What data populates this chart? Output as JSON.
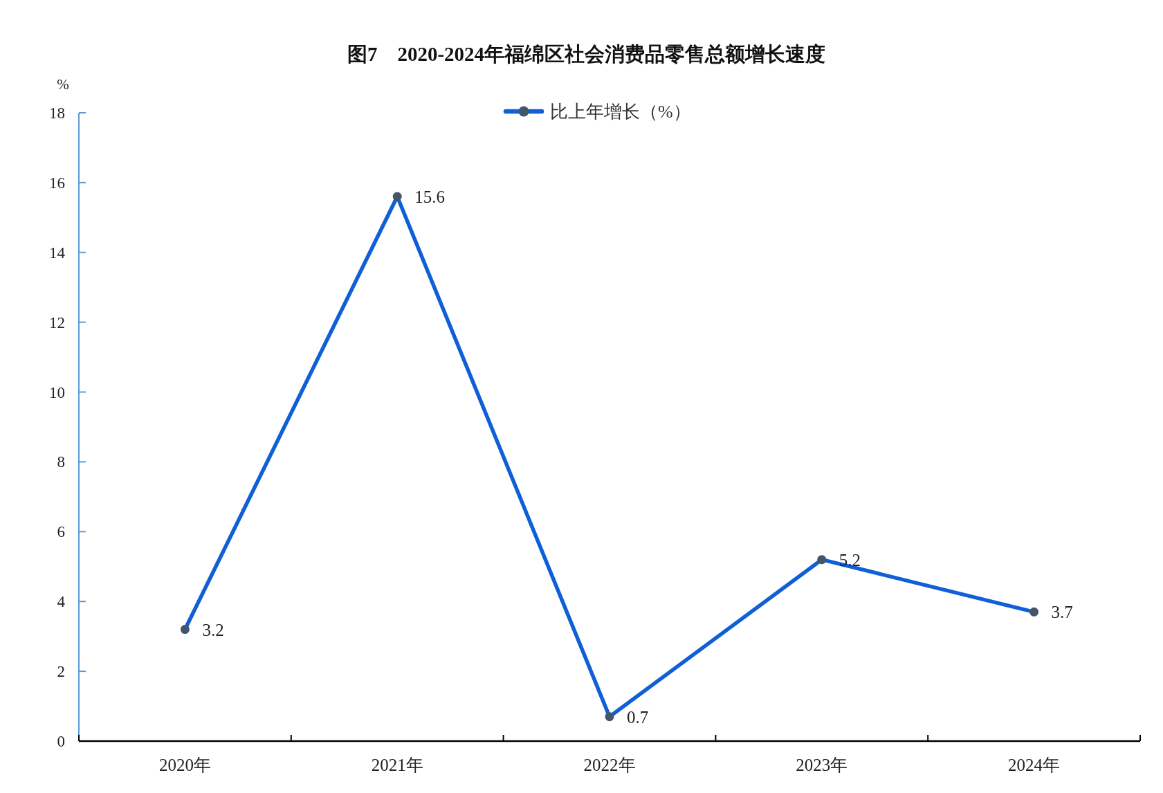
{
  "chart_data": {
    "type": "line",
    "title": "图7　2020-2024年福绵区社会消费品零售总额增长速度",
    "ylabel": "%",
    "categories": [
      "2020年",
      "2021年",
      "2022年",
      "2023年",
      "2024年"
    ],
    "series": [
      {
        "name": "比上年增长（%）",
        "color": "#0f5fd6",
        "colors": [
          "#44546a",
          "#44546a",
          "#44546a",
          "#44546a",
          "#44546a"
        ],
        "values": [
          3.2,
          15.6,
          0.7,
          5.2,
          3.7
        ]
      }
    ],
    "ylim": [
      0,
      18
    ],
    "yticks": [
      0,
      2,
      4,
      6,
      8,
      10,
      12,
      14,
      16,
      18
    ],
    "data_labels": true,
    "legend": "top",
    "marker": "circle",
    "line_style": "solid"
  }
}
